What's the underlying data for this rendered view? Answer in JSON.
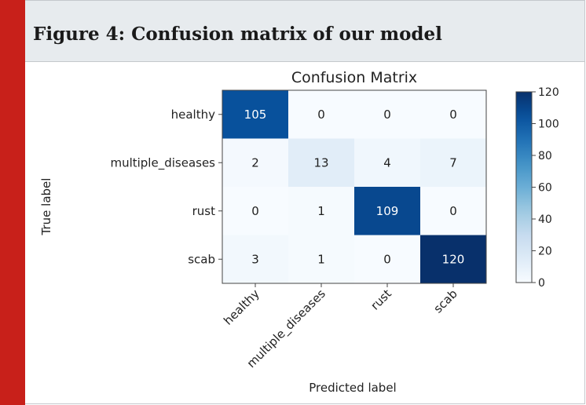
{
  "figure": {
    "caption": "Figure 4: Confusion matrix of our model"
  },
  "colors": {
    "accent_bar": "#c8201a",
    "caption_band": "#e7ebee",
    "colormap_low": "#f7fbff",
    "colormap_high": "#08306b"
  },
  "chart_data": {
    "type": "heatmap",
    "title": "Confusion Matrix",
    "xlabel": "Predicted label",
    "ylabel": "True label",
    "x_categories": [
      "healthy",
      "multiple_diseases",
      "rust",
      "scab"
    ],
    "y_categories": [
      "healthy",
      "multiple_diseases",
      "rust",
      "scab"
    ],
    "values": [
      [
        105,
        0,
        0,
        0
      ],
      [
        2,
        13,
        4,
        7
      ],
      [
        0,
        1,
        109,
        0
      ],
      [
        3,
        1,
        0,
        120
      ]
    ],
    "colorbar": {
      "min": 0,
      "max": 120,
      "ticks": [
        0,
        20,
        40,
        60,
        80,
        100,
        120
      ]
    },
    "colormap": "Blues"
  }
}
